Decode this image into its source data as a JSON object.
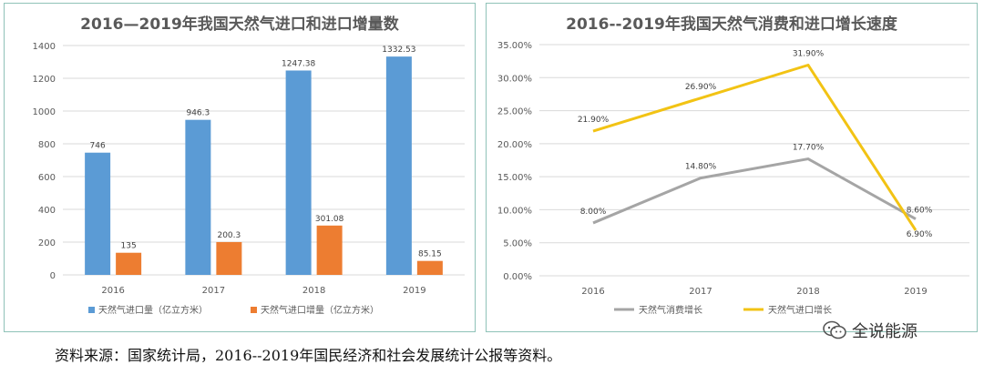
{
  "chart_data": [
    {
      "type": "bar",
      "title": "2016—2019年我国天然气进口和进口增量数",
      "categories": [
        "2016",
        "2017",
        "2018",
        "2019"
      ],
      "series": [
        {
          "name": "天然气进口量（亿立方米）",
          "values": [
            746,
            946.3,
            1247.38,
            1332.53
          ],
          "labels": [
            "746",
            "946.3",
            "1247.38",
            "1332.53"
          ],
          "color": "#5b9bd5"
        },
        {
          "name": "天然气进口增量（亿立方米）",
          "values": [
            135,
            200.3,
            301.08,
            85.15
          ],
          "labels": [
            "135",
            "200.3",
            "301.08",
            "85.15"
          ],
          "color": "#ed7d31"
        }
      ],
      "yticks": [
        "0",
        "200",
        "400",
        "600",
        "800",
        "1000",
        "1200",
        "1400"
      ],
      "ylim": [
        0,
        1400
      ],
      "grid": true,
      "legend": "bottom"
    },
    {
      "type": "line",
      "title": "2016--2019年我国天然气消费和进口增长速度",
      "categories": [
        "2016",
        "2017",
        "2018",
        "2019"
      ],
      "series": [
        {
          "name": "天然气消费增长",
          "values": [
            8.0,
            14.8,
            17.7,
            8.6
          ],
          "labels": [
            "8.00%",
            "14.80%",
            "17.70%",
            "8.60%"
          ],
          "color": "#a5a5a5"
        },
        {
          "name": "天然气进口增长",
          "values": [
            21.9,
            26.9,
            31.9,
            6.9
          ],
          "labels": [
            "21.90%",
            "26.90%",
            "31.90%",
            "6.90%"
          ],
          "color": "#f2c314"
        }
      ],
      "yticks": [
        "0.00%",
        "5.00%",
        "10.00%",
        "15.00%",
        "20.00%",
        "25.00%",
        "30.00%",
        "35.00%"
      ],
      "ylim": [
        0,
        35
      ],
      "grid": true,
      "legend": "bottom"
    }
  ],
  "footer": "资料来源：国家统计局，2016--2019年国民经济和社会发展统计公报等资料。",
  "watermark": "全说能源"
}
